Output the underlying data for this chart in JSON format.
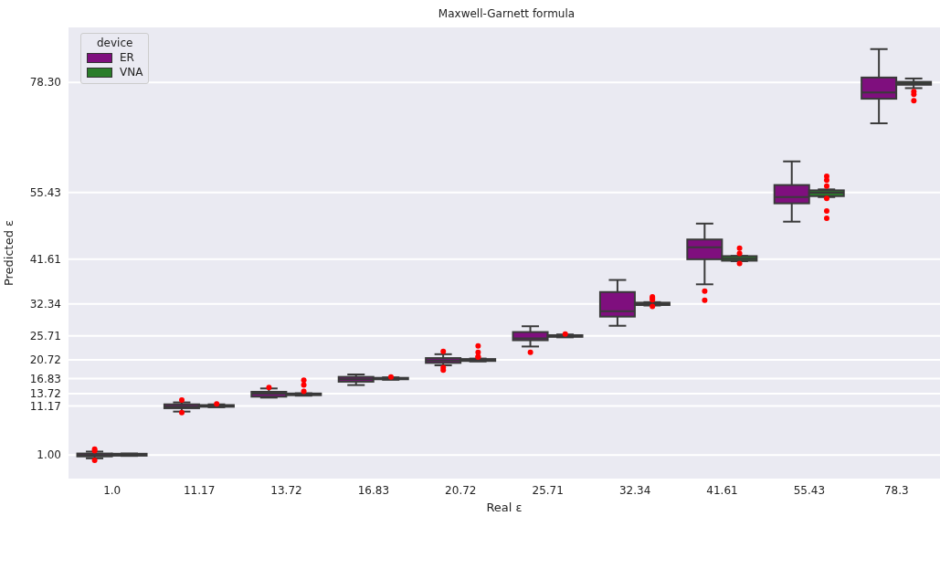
{
  "chart_data": {
    "type": "box",
    "title": "Maxwell-Garnett formula",
    "xlabel": "Real ε",
    "ylabel": "Predicted ε",
    "legend_title": "device",
    "categories": [
      "1.0",
      "11.17",
      "13.72",
      "16.83",
      "20.72",
      "25.71",
      "32.34",
      "41.61",
      "55.43",
      "78.3"
    ],
    "series": [
      {
        "name": "ER",
        "color": "#7f0f7e",
        "boxes": [
          {
            "low": 0.3,
            "q1": 0.7,
            "median": 1.0,
            "q3": 1.3,
            "high": 1.7,
            "outliers": [
              2.2,
              1.9,
              -0.1
            ]
          },
          {
            "low": 10.0,
            "q1": 10.7,
            "median": 11.0,
            "q3": 11.5,
            "high": 11.9,
            "outliers": [
              12.4,
              9.8
            ]
          },
          {
            "low": 12.9,
            "q1": 13.1,
            "median": 13.7,
            "q3": 14.1,
            "high": 14.8,
            "outliers": [
              15.0
            ]
          },
          {
            "low": 15.5,
            "q1": 16.2,
            "median": 16.7,
            "q3": 17.2,
            "high": 17.7
          },
          {
            "low": 19.6,
            "q1": 20.1,
            "median": 20.6,
            "q3": 21.1,
            "high": 21.9,
            "outliers": [
              22.5,
              19.1,
              18.6
            ]
          },
          {
            "low": 23.5,
            "q1": 24.8,
            "median": 25.2,
            "q3": 26.5,
            "high": 27.7,
            "outliers": [
              22.3
            ]
          },
          {
            "low": 27.8,
            "q1": 29.7,
            "median": 30.8,
            "q3": 34.8,
            "high": 37.3
          },
          {
            "low": 36.4,
            "q1": 41.6,
            "median": 44.1,
            "q3": 45.7,
            "high": 49.0,
            "outliers": [
              35.0,
              33.1
            ]
          },
          {
            "low": 49.4,
            "q1": 53.2,
            "median": 54.5,
            "q3": 57.0,
            "high": 61.9
          },
          {
            "low": 69.8,
            "q1": 74.9,
            "median": 76.2,
            "q3": 79.3,
            "high": 85.2
          }
        ]
      },
      {
        "name": "VNA",
        "color": "#2a7d2a",
        "boxes": [
          {
            "low": 0.8,
            "q1": 0.85,
            "median": 1.05,
            "q3": 1.25,
            "high": 1.3
          },
          {
            "low": 10.9,
            "q1": 11.0,
            "median": 11.2,
            "q3": 11.35,
            "high": 11.5,
            "outliers": [
              11.6
            ]
          },
          {
            "low": 13.3,
            "q1": 13.4,
            "median": 13.65,
            "q3": 13.75,
            "high": 13.8,
            "outliers": [
              16.5,
              15.5,
              14.2
            ]
          },
          {
            "low": 16.6,
            "q1": 16.7,
            "median": 16.85,
            "q3": 17.0,
            "high": 17.1,
            "outliers": [
              17.2
            ]
          },
          {
            "low": 20.4,
            "q1": 20.5,
            "median": 20.75,
            "q3": 20.9,
            "high": 21.0,
            "outliers": [
              23.6,
              22.3,
              21.4,
              21.3
            ]
          },
          {
            "low": 25.4,
            "q1": 25.5,
            "median": 25.7,
            "q3": 25.85,
            "high": 26.0,
            "outliers": [
              26.1
            ]
          },
          {
            "low": 32.0,
            "q1": 32.1,
            "median": 32.35,
            "q3": 32.6,
            "high": 32.7,
            "outliers": [
              33.8,
              33.5,
              33.2,
              31.8
            ]
          },
          {
            "low": 41.2,
            "q1": 41.3,
            "median": 41.7,
            "q3": 42.25,
            "high": 42.3,
            "outliers": [
              43.9,
              42.8,
              40.7
            ]
          },
          {
            "low": 54.5,
            "q1": 54.7,
            "median": 55.4,
            "q3": 55.9,
            "high": 56.1,
            "outliers": [
              58.8,
              58.0,
              56.8,
              54.2,
              51.6,
              50.1
            ]
          },
          {
            "low": 77.1,
            "q1": 77.8,
            "median": 78.1,
            "q3": 78.4,
            "high": 79.1,
            "outliers": [
              76.4,
              75.8,
              74.5
            ]
          }
        ]
      }
    ],
    "ylim": [
      -3.9,
      89.7
    ],
    "yticks": [
      {
        "value": 1.0,
        "label": "1.00"
      },
      {
        "value": 11.17,
        "label": "11.17"
      },
      {
        "value": 13.72,
        "label": "13.72"
      },
      {
        "value": 16.83,
        "label": "16.83"
      },
      {
        "value": 20.72,
        "label": "20.72"
      },
      {
        "value": 25.71,
        "label": "25.71"
      },
      {
        "value": 32.34,
        "label": "32.34"
      },
      {
        "value": 41.61,
        "label": "41.61"
      },
      {
        "value": 55.43,
        "label": "55.43"
      },
      {
        "value": 78.3,
        "label": "78.30"
      }
    ],
    "grid": "y",
    "legend": "top left"
  }
}
